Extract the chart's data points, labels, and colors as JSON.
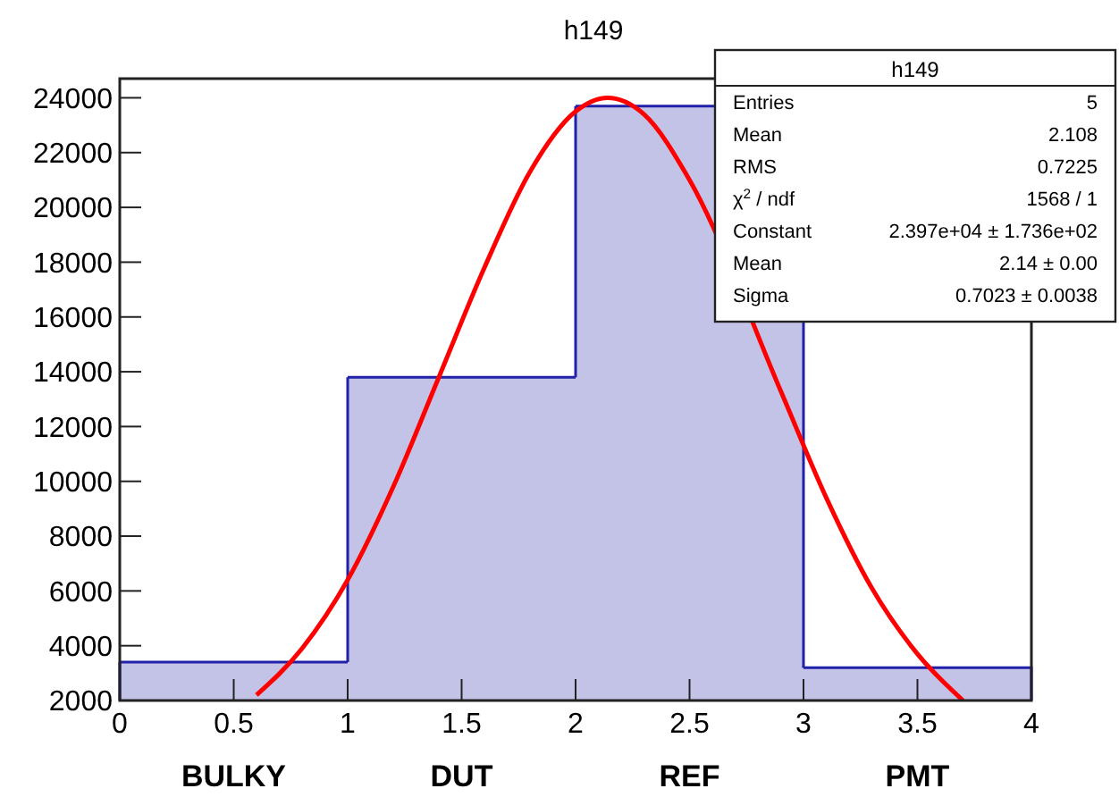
{
  "chart_data": {
    "type": "histogram",
    "title": "h149",
    "bins": [
      0,
      1,
      2,
      3,
      4
    ],
    "categories": [
      "BULKY",
      "DUT",
      "REF",
      "PMT"
    ],
    "series": [
      {
        "color": "#2020a8",
        "values": [
          3400,
          13800,
          23700,
          3200
        ]
      },
      {
        "type": "line",
        "color": "#ff0000",
        "x": [
          0.6,
          0.8,
          1.0,
          1.2,
          1.4,
          1.6,
          1.8,
          2.0,
          2.14,
          2.3,
          2.5,
          2.7,
          2.9,
          3.1,
          3.3,
          3.5,
          3.7
        ],
        "values": [
          2200,
          3900,
          6400,
          9800,
          13800,
          17800,
          21300,
          23500,
          24000,
          23400,
          21000,
          null,
          13300,
          9400,
          6100,
          3700,
          2000
        ]
      }
    ],
    "xlim": [
      0,
      4
    ],
    "xticks": [
      0,
      0.5,
      1,
      1.5,
      2,
      2.5,
      3,
      3.5,
      4
    ],
    "ylim": [
      2000,
      24700
    ],
    "yticks": [
      2000,
      4000,
      6000,
      8000,
      10000,
      12000,
      14000,
      16000,
      18000,
      20000,
      22000,
      24000
    ],
    "grid": false,
    "annotations": [
      "h149",
      "Entries",
      "5",
      "Mean",
      "2.108",
      "RMS",
      "0.7225",
      "χ$^{2}$ / ndf",
      "1568 / 1",
      "Constant",
      "2.397e+04 ± 1.736e+02",
      "Mean",
      "2.14 ± 0.00",
      "Sigma",
      "0.7023 ± 0.0038"
    ]
  }
}
